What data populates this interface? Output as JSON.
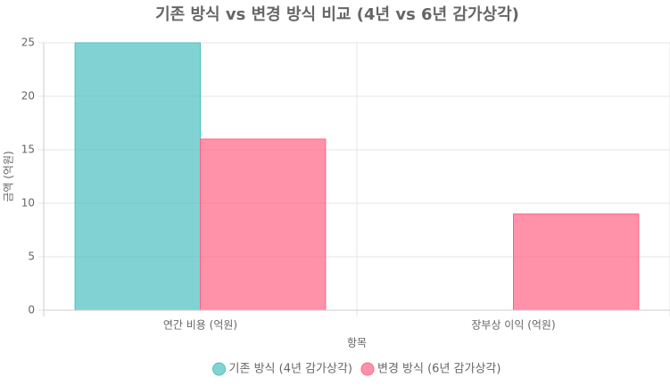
{
  "chart_data": {
    "type": "bar",
    "title": "기존 방식 vs 변경 방식 비교 (4년 vs 6년 감가상각)",
    "x_label": "항목",
    "y_label": "금액 (억원)",
    "categories": [
      "연간 비용 (억원)",
      "장부상 이익 (억원)"
    ],
    "series": [
      {
        "name": "기존 방식 (4년 감가상각)",
        "color": "#4bc0c0",
        "values": [
          25,
          0
        ]
      },
      {
        "name": "변경 방식 (6년 감가상각)",
        "color": "#ff6384",
        "values": [
          16,
          9
        ]
      }
    ],
    "ylim": [
      0,
      25
    ],
    "yticks": [
      0,
      5,
      10,
      15,
      20,
      25
    ],
    "grid": true,
    "legend": "bottom"
  }
}
